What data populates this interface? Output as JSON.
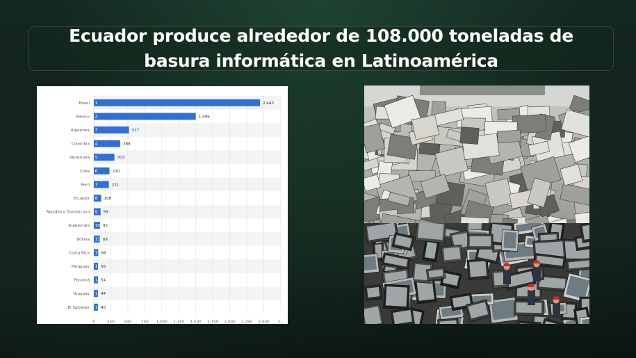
{
  "title": "Ecuador produce alrededor de 108.000 toneladas de basura informática en Latinoamérica",
  "colors": {
    "bar": "#2f6fd6",
    "title": "#ffffff"
  },
  "chart_data": {
    "type": "bar",
    "orientation": "horizontal",
    "categories": [
      "Brasil",
      "México",
      "Argentina",
      "Colombia",
      "Venezuela",
      "Chile",
      "Perú",
      "Ecuador",
      "República Dominicana",
      "Guatemala",
      "Bolivia",
      "Costa Rica",
      "Paraguay",
      "Panamá",
      "Uruguay",
      "El Salvador"
    ],
    "ranks": [
      "1",
      "2",
      "3",
      "4",
      "5",
      "6",
      "7",
      "8",
      "9",
      "10",
      "11",
      "12",
      "13",
      "14",
      "15",
      "16"
    ],
    "values": [
      2443,
      1499,
      517,
      388,
      303,
      230,
      221,
      108,
      99,
      92,
      89,
      66,
      56,
      54,
      44,
      40
    ],
    "value_labels": [
      "2.443",
      "1.499",
      "517",
      "388",
      "303",
      "230",
      "221",
      "108",
      "99",
      "92",
      "89",
      "66",
      "56",
      "54",
      "44",
      "40"
    ],
    "x_ticks": [
      "0",
      "250",
      "500",
      "750",
      "1,000",
      "1,250",
      "1,500",
      "1,750",
      "2,000",
      "2,250",
      "2,500",
      "2..."
    ],
    "xlim": [
      0,
      2750
    ],
    "grid": true
  },
  "images": {
    "top": "pile-of-discarded-computer-equipment",
    "bottom": "workers-sorting-discarded-monitors"
  }
}
